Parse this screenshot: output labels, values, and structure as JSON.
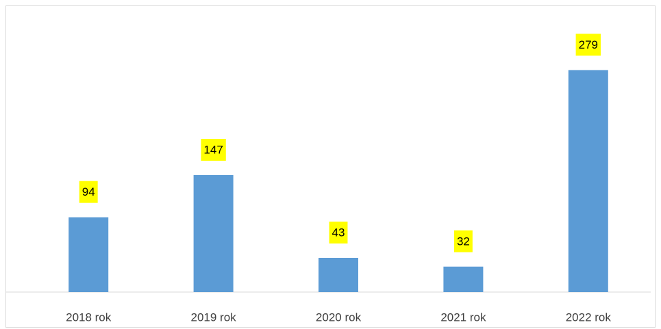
{
  "chart_data": {
    "type": "bar",
    "categories": [
      "2018 rok",
      "2019 rok",
      "2020 rok",
      "2021 rok",
      "2022 rok"
    ],
    "values": [
      94,
      147,
      43,
      32,
      279
    ],
    "color": "#5b9bd5",
    "label_background": "#ffff00",
    "ylim": [
      0,
      300
    ],
    "grid": false
  }
}
